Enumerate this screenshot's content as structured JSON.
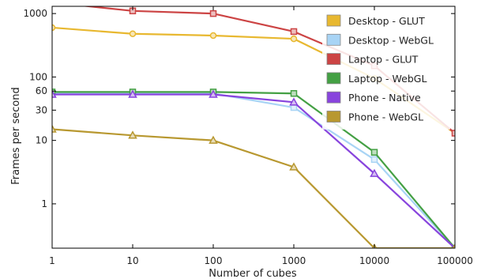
{
  "chart_data": {
    "type": "line",
    "xlabel": "Number of cubes",
    "ylabel": "Frames per second",
    "xscale": "log",
    "yscale": "log",
    "xlim": [
      1,
      100000
    ],
    "ylim": [
      0.2,
      1300
    ],
    "grid": false,
    "legend_position": "top-right",
    "x": [
      1,
      10,
      100,
      1000,
      10000,
      100000
    ],
    "x_tick_labels": [
      "1",
      "10",
      "100",
      "1000",
      "10000",
      "100000"
    ],
    "y_ticks": [
      1,
      10,
      30,
      60,
      100,
      1000
    ],
    "y_tick_labels": [
      "1",
      "10",
      "30",
      "60",
      "100",
      "1000"
    ],
    "series": [
      {
        "name": "Desktop - GLUT",
        "color": "#e8b830",
        "marker": "circle",
        "values": [
          600,
          480,
          450,
          400,
          95,
          13
        ]
      },
      {
        "name": "Desktop - WebGL",
        "color": "#a8d4f5",
        "marker": "square",
        "values": [
          55,
          55,
          55,
          33,
          5,
          0.2
        ]
      },
      {
        "name": "Laptop - GLUT",
        "color": "#cc4444",
        "marker": "square",
        "values": [
          1500,
          1100,
          1000,
          520,
          150,
          13
        ]
      },
      {
        "name": "Laptop - WebGL",
        "color": "#44a044",
        "marker": "square",
        "values": [
          58,
          58,
          58,
          55,
          6.5,
          0.2
        ]
      },
      {
        "name": "Phone - Native",
        "color": "#8844dd",
        "marker": "triangle",
        "values": [
          53,
          53,
          53,
          40,
          3,
          0.2
        ]
      },
      {
        "name": "Phone - WebGL",
        "color": "#b89830",
        "marker": "triangle",
        "values": [
          15,
          12,
          10,
          3.8,
          0.2,
          0.2
        ]
      }
    ]
  }
}
